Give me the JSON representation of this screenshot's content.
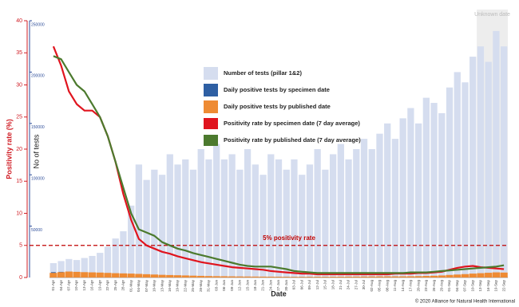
{
  "chart_data": {
    "type": "bar-line",
    "categories": [
      "01-Apr",
      "04-Apr",
      "07-Apr",
      "10-Apr",
      "13-Apr",
      "16-Apr",
      "19-Apr",
      "22-Apr",
      "25-Apr",
      "28-Apr",
      "01-May",
      "04-May",
      "07-May",
      "10-May",
      "13-May",
      "16-May",
      "19-May",
      "22-May",
      "25-May",
      "28-May",
      "31-May",
      "03-Jun",
      "06-Jun",
      "09-Jun",
      "12-Jun",
      "15-Jun",
      "18-Jun",
      "21-Jun",
      "24-Jun",
      "27-Jun",
      "30-Jun",
      "03-Jul",
      "06-Jul",
      "09-Jul",
      "12-Jul",
      "15-Jul",
      "18-Jul",
      "21-Jul",
      "24-Jul",
      "27-Jul",
      "30-Jul",
      "02-Aug",
      "05-Aug",
      "08-Aug",
      "11-Aug",
      "14-Aug",
      "17-Aug",
      "20-Aug",
      "23-Aug",
      "26-Aug",
      "29-Aug",
      "01-Sep",
      "04-Sep",
      "07-Sep",
      "10-Sep",
      "13-Sep",
      "16-Sep",
      "19-Sep",
      "22-Sep"
    ],
    "x_label": "Date",
    "y_label": "No of tests",
    "y2_label": "Positivity rate (%)",
    "ylim": [
      0,
      250000
    ],
    "yticks": [
      50000,
      100000,
      150000,
      200000,
      250000
    ],
    "y2lim": [
      0,
      40
    ],
    "y2ticks": [
      0,
      5,
      10,
      15,
      20,
      25,
      30,
      35,
      40
    ],
    "series": [
      {
        "name": "Number of tests (pillar 1&2)",
        "type": "bar",
        "color": "#d5ddef",
        "values": [
          14000,
          16000,
          18000,
          17000,
          19000,
          21000,
          24000,
          30000,
          38000,
          45000,
          70000,
          110000,
          95000,
          105000,
          100000,
          120000,
          110000,
          115000,
          105000,
          125000,
          115000,
          130000,
          115000,
          120000,
          105000,
          125000,
          110000,
          100000,
          120000,
          115000,
          105000,
          115000,
          100000,
          110000,
          125000,
          105000,
          120000,
          130000,
          115000,
          125000,
          135000,
          125000,
          140000,
          150000,
          135000,
          155000,
          165000,
          150000,
          175000,
          170000,
          160000,
          185000,
          200000,
          190000,
          215000,
          225000,
          210000,
          240000,
          225000
        ]
      },
      {
        "name": "Daily positive tests by specimen date",
        "type": "bar",
        "color": "#2e5fa3",
        "values": [
          5200,
          5500,
          5300,
          5000,
          4800,
          4600,
          4300,
          4000,
          3800,
          3500,
          3200,
          3000,
          2800,
          2500,
          2200,
          2000,
          1800,
          1600,
          1400,
          1300,
          1200,
          1100,
          1000,
          900,
          850,
          800,
          750,
          700,
          650,
          600,
          600,
          550,
          550,
          600,
          600,
          650,
          700,
          750,
          800,
          800,
          850,
          900,
          950,
          1000,
          1000,
          1050,
          1100,
          1200,
          1300,
          1500,
          1800,
          2200,
          2600,
          3000,
          3400,
          3800,
          4200,
          4500,
          4000
        ]
      },
      {
        "name": "Daily positive tests by published date",
        "type": "bar",
        "color": "#ee8b34",
        "values": [
          4500,
          5200,
          5800,
          5500,
          5200,
          5000,
          4800,
          4500,
          4200,
          4000,
          3800,
          3500,
          3200,
          2900,
          2600,
          2400,
          2200,
          2000,
          1800,
          1600,
          1400,
          1300,
          1200,
          1100,
          1000,
          950,
          900,
          850,
          800,
          750,
          700,
          650,
          650,
          650,
          700,
          700,
          750,
          800,
          850,
          900,
          950,
          1000,
          1050,
          1100,
          1100,
          1150,
          1200,
          1300,
          1500,
          1700,
          2000,
          2500,
          2900,
          3300,
          3800,
          4200,
          4600,
          5000,
          4800
        ]
      },
      {
        "name": "Positivity rate by specimen date (7 day average)",
        "type": "line",
        "axis": "y2",
        "color": "#e0141e",
        "values": [
          36,
          33,
          29,
          27,
          26,
          26,
          25,
          22,
          18,
          13,
          9,
          6,
          5,
          4.5,
          4,
          3.7,
          3.3,
          3,
          2.7,
          2.4,
          2.2,
          2,
          1.8,
          1.6,
          1.5,
          1.4,
          1.3,
          1.2,
          1,
          0.9,
          0.8,
          0.7,
          0.6,
          0.6,
          0.5,
          0.5,
          0.5,
          0.5,
          0.5,
          0.5,
          0.5,
          0.5,
          0.5,
          0.5,
          0.6,
          0.6,
          0.6,
          0.7,
          0.7,
          0.8,
          0.9,
          1.2,
          1.5,
          1.7,
          1.8,
          1.6,
          1.5,
          1.4,
          1.3
        ]
      },
      {
        "name": "Positivity rate by published date (7 day average)",
        "type": "line",
        "axis": "y2",
        "color": "#4c7a2e",
        "values": [
          34.5,
          34,
          32,
          30,
          29,
          27,
          25,
          22,
          18,
          14,
          10,
          7.5,
          7,
          6.5,
          5.5,
          5,
          4.5,
          4.2,
          3.8,
          3.5,
          3.2,
          2.9,
          2.6,
          2.3,
          2,
          1.8,
          1.7,
          1.7,
          1.7,
          1.5,
          1.3,
          1,
          0.9,
          0.8,
          0.7,
          0.7,
          0.7,
          0.7,
          0.7,
          0.7,
          0.7,
          0.7,
          0.7,
          0.7,
          0.7,
          0.7,
          0.8,
          0.8,
          0.8,
          0.9,
          1,
          1.1,
          1.2,
          1.3,
          1.4,
          1.5,
          1.6,
          1.7,
          1.9
        ]
      }
    ],
    "reference_line": {
      "value": 5,
      "axis": "y2",
      "label": "5% positivity rate",
      "color": "#c00000"
    },
    "shaded_region": {
      "from": "13-Sep",
      "label": "Unknown date"
    },
    "y_axis_color": "#2e4e9a",
    "y2_axis_color": "#d01c24",
    "footer": "© 2020 Alliance for Natural Health International"
  }
}
